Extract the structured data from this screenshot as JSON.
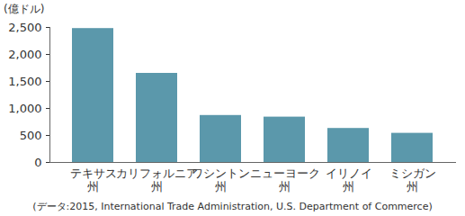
{
  "chart_data": {
    "type": "bar",
    "y_label": "(億ドル)",
    "caption": "(データ:2015, International Trade Administration, U.S. Department of Commerce)",
    "categories": [
      "テキサス\n州",
      "カリフォルニア\n州",
      "ワシントン\n州",
      "ニューヨーク\n州",
      "イリノイ\n州",
      "ミシガン\n州"
    ],
    "values": [
      2480,
      1650,
      870,
      840,
      630,
      540
    ],
    "color": "#5b98ab",
    "ylim": [
      0,
      2500
    ],
    "yticks": [
      0,
      500,
      1000,
      1500,
      2000,
      2500
    ],
    "grid": false
  }
}
